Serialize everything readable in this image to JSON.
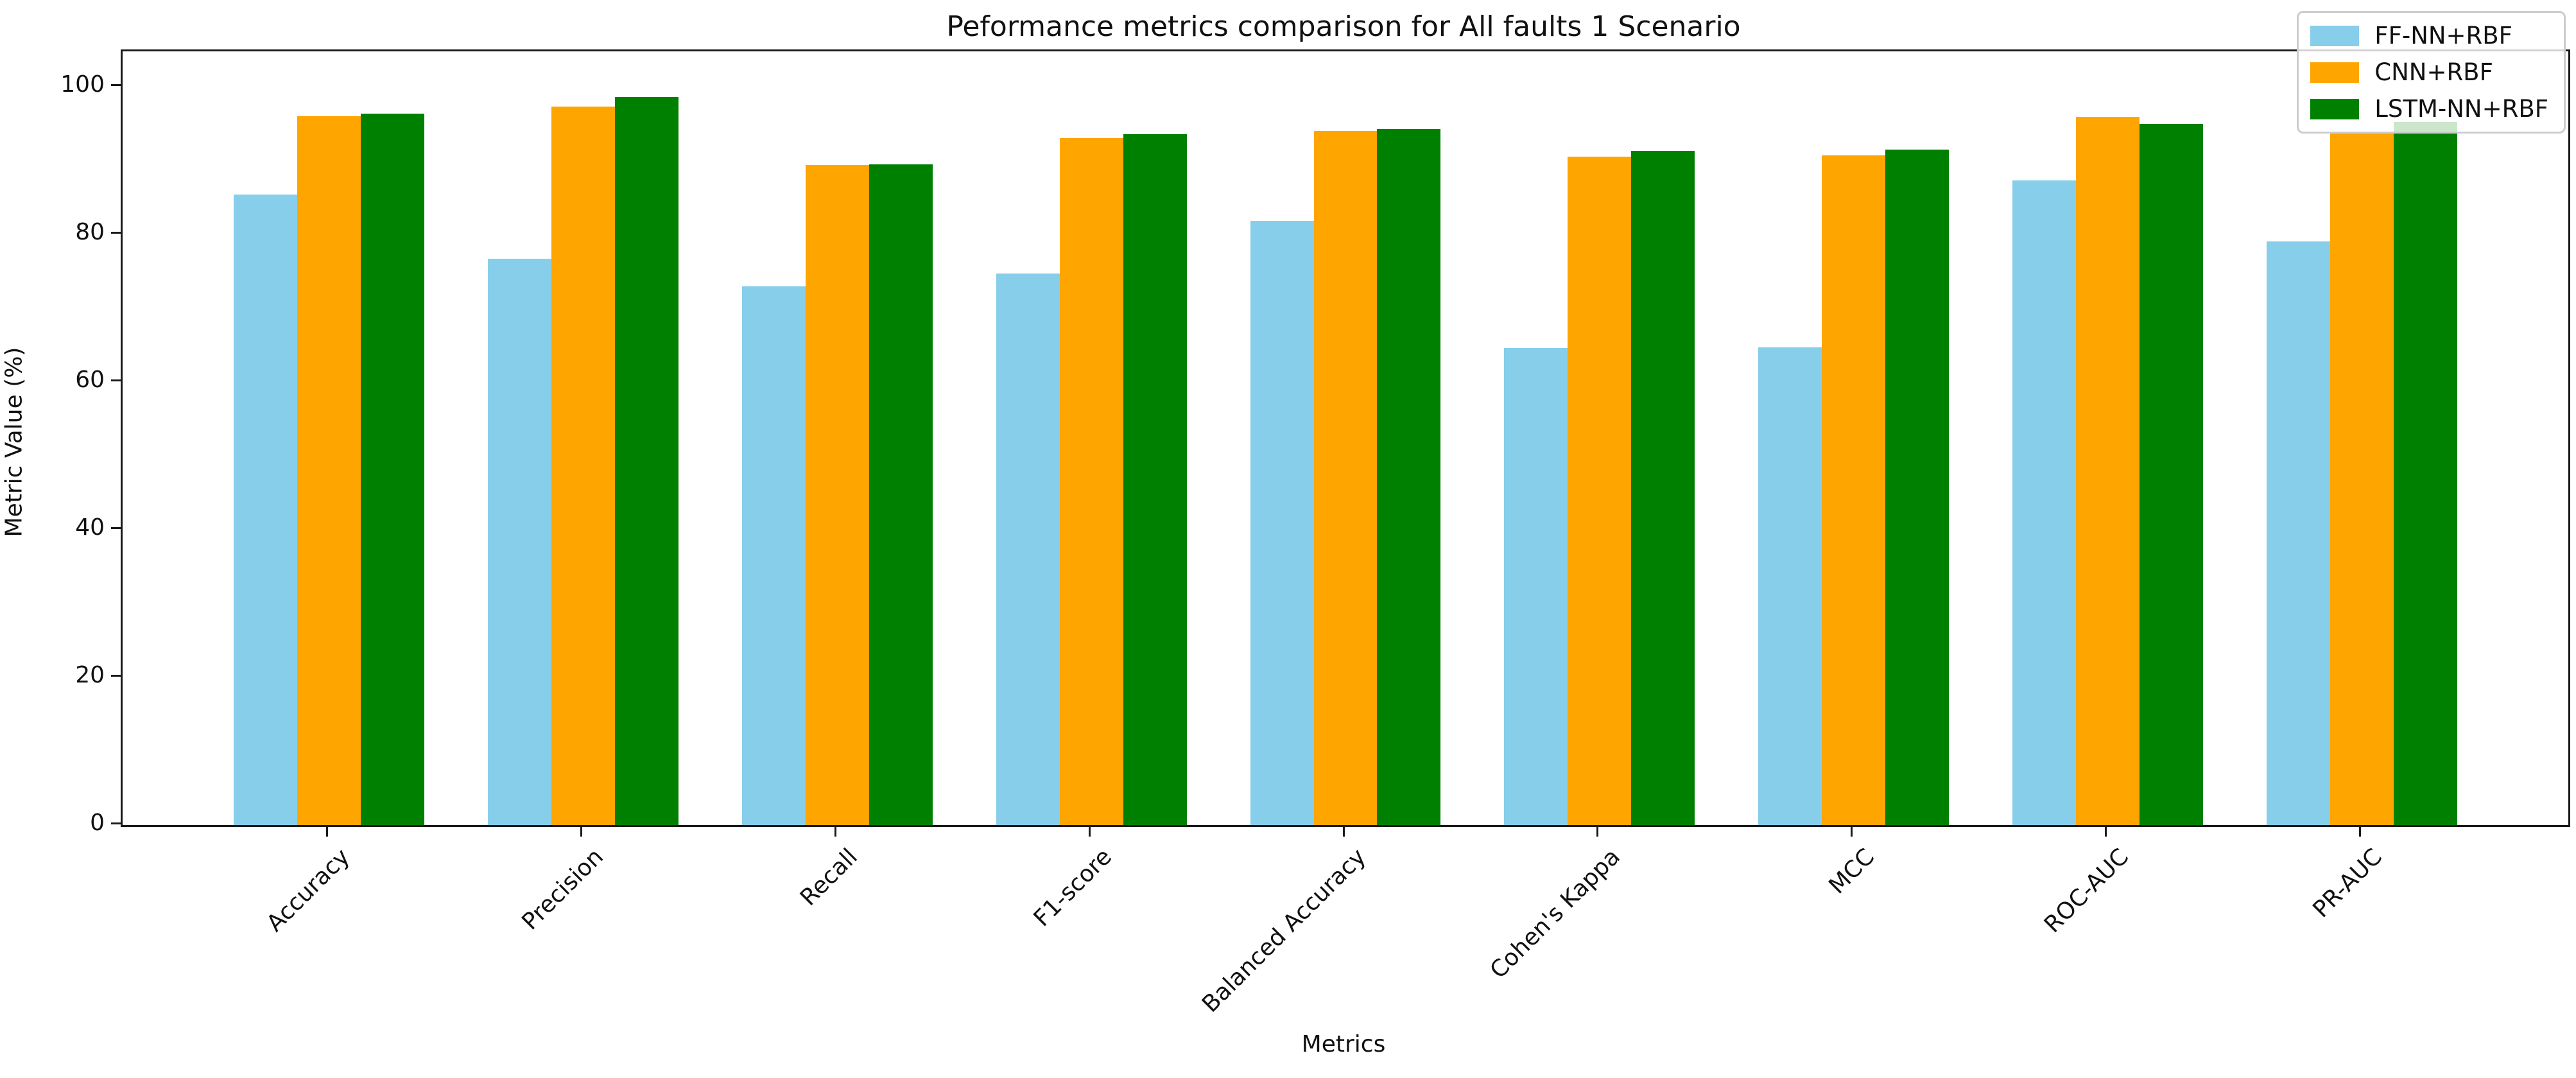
{
  "figure": {
    "title": "Peformance metrics comparison for All faults 1 Scenario",
    "xlabel": "Metrics",
    "ylabel": "Metric Value (%)"
  },
  "chart_data": {
    "type": "bar",
    "title": "Peformance metrics comparison for All faults 1 Scenario",
    "xlabel": "Metrics",
    "ylabel": "Metric Value (%)",
    "categories": [
      "Accuracy",
      "Precision",
      "Recall",
      "F1-score",
      "Balanced Accuracy",
      "Cohen's Kappa",
      "MCC",
      "ROC-AUC",
      "PR-AUC"
    ],
    "series": [
      {
        "name": "FF-NN+RBF",
        "color": "#87CEEB",
        "values": [
          85.4,
          76.7,
          73.0,
          74.7,
          81.8,
          64.6,
          64.7,
          87.3,
          79.1
        ]
      },
      {
        "name": "CNN+RBF",
        "color": "#FFA500",
        "values": [
          96.0,
          97.3,
          89.4,
          93.1,
          94.0,
          90.5,
          90.7,
          95.9,
          93.7
        ]
      },
      {
        "name": "LSTM-NN+RBF",
        "color": "#008000",
        "values": [
          96.4,
          98.6,
          89.5,
          93.6,
          94.3,
          91.3,
          91.5,
          95.0,
          95.2
        ]
      }
    ],
    "ylim": [
      0,
      104.8
    ],
    "yticks": [
      0,
      20,
      40,
      60,
      80,
      100
    ],
    "grid": false,
    "legend_position": "upper right",
    "bar_layout": {
      "bar_width_units": 0.25,
      "group_stride_units": 1,
      "x_pad_units": 0.8125
    }
  }
}
